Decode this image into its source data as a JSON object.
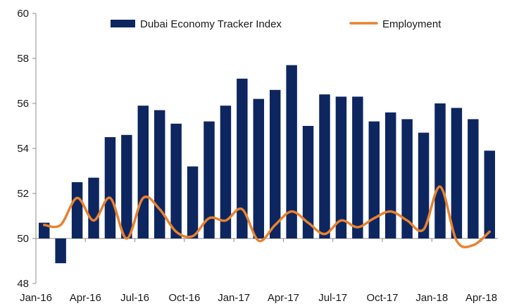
{
  "chart_data": {
    "type": "bar",
    "title": "",
    "xlabel": "",
    "ylabel": "",
    "ylim": [
      48,
      60
    ],
    "yticks": [
      48,
      50,
      52,
      54,
      56,
      58,
      60
    ],
    "grid": false,
    "legend_position": "top",
    "categories": [
      "Jan-16",
      "Feb-16",
      "Mar-16",
      "Apr-16",
      "May-16",
      "Jun-16",
      "Jul-16",
      "Aug-16",
      "Sep-16",
      "Oct-16",
      "Nov-16",
      "Dec-16",
      "Jan-17",
      "Feb-17",
      "Mar-17",
      "Apr-17",
      "May-17",
      "Jun-17",
      "Jul-17",
      "Aug-17",
      "Sep-17",
      "Oct-17",
      "Nov-17",
      "Dec-17",
      "Jan-18",
      "Feb-18",
      "Mar-18",
      "Apr-18"
    ],
    "xtick_labels": [
      "Jan-16",
      "Apr-16",
      "Jul-16",
      "Oct-16",
      "Jan-17",
      "Apr-17",
      "Jul-17",
      "Oct-17",
      "Jan-18",
      "Apr-18"
    ],
    "series": [
      {
        "name": "Dubai Economy Tracker Index",
        "kind": "bar",
        "color": "#0d2660",
        "values": [
          50.7,
          48.9,
          52.5,
          52.7,
          54.5,
          54.6,
          55.9,
          55.7,
          55.1,
          53.2,
          55.2,
          55.9,
          57.1,
          56.2,
          56.6,
          57.7,
          55.0,
          56.4,
          56.3,
          56.3,
          55.2,
          55.6,
          55.3,
          54.7,
          56.0,
          55.8,
          55.3,
          53.9
        ]
      },
      {
        "name": "Employment",
        "kind": "line",
        "color": "#e8822e",
        "values": [
          50.6,
          50.6,
          51.8,
          50.8,
          51.8,
          50.0,
          51.8,
          51.3,
          50.3,
          50.1,
          50.9,
          50.8,
          51.3,
          49.9,
          50.6,
          51.2,
          50.7,
          50.2,
          50.8,
          50.5,
          50.9,
          51.2,
          50.8,
          50.4,
          52.3,
          49.9,
          49.7,
          50.3
        ]
      }
    ]
  }
}
